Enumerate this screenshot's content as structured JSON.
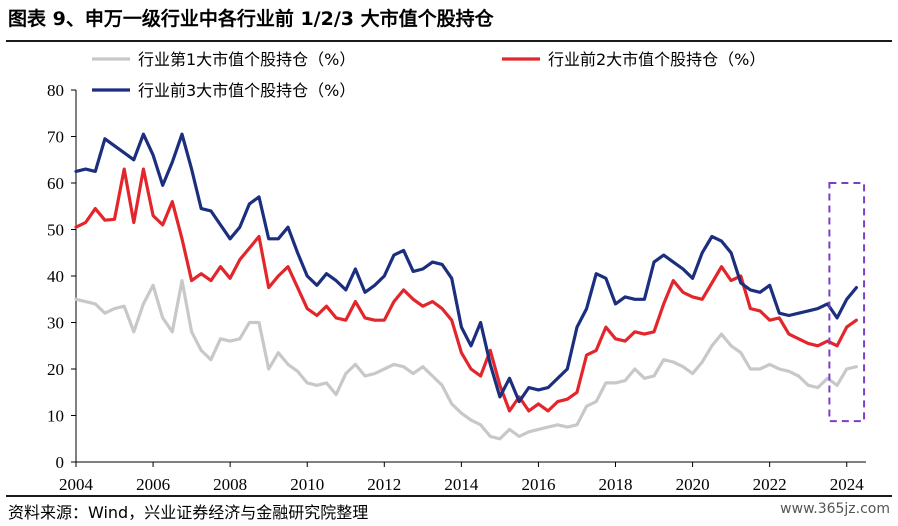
{
  "header": {
    "title": "图表 9、申万一级行业中各行业前 1/2/3 大市值个股持仓"
  },
  "footer": {
    "source": "资料来源：Wind，兴业证券经济与金融研究院整理",
    "watermark": "www.365jz.com"
  },
  "colors": {
    "top1": "#c8c8c8",
    "top2": "#e3262b",
    "top3": "#1b2f7e",
    "highlight": "#7a3fc4"
  },
  "chart_data": {
    "type": "line",
    "title": "",
    "xlabel": "",
    "ylabel": "",
    "xlim": [
      2004,
      2024.5
    ],
    "ylim": [
      0,
      80
    ],
    "x_ticks": [
      "2004",
      "2006",
      "2008",
      "2010",
      "2012",
      "2014",
      "2016",
      "2018",
      "2020",
      "2022",
      "2024"
    ],
    "y_ticks": [
      "0",
      "10",
      "20",
      "30",
      "40",
      "50",
      "60",
      "70",
      "80"
    ],
    "legend_position": "top",
    "grid": false,
    "annotation": "dashed purple box highlighting 2023 Q4 - 2024 Q2",
    "x": [
      2004.0,
      2004.25,
      2004.5,
      2004.75,
      2005.0,
      2005.25,
      2005.5,
      2005.75,
      2006.0,
      2006.25,
      2006.5,
      2006.75,
      2007.0,
      2007.25,
      2007.5,
      2007.75,
      2008.0,
      2008.25,
      2008.5,
      2008.75,
      2009.0,
      2009.25,
      2009.5,
      2009.75,
      2010.0,
      2010.25,
      2010.5,
      2010.75,
      2011.0,
      2011.25,
      2011.5,
      2011.75,
      2012.0,
      2012.25,
      2012.5,
      2012.75,
      2013.0,
      2013.25,
      2013.5,
      2013.75,
      2014.0,
      2014.25,
      2014.5,
      2014.75,
      2015.0,
      2015.25,
      2015.5,
      2015.75,
      2016.0,
      2016.25,
      2016.5,
      2016.75,
      2017.0,
      2017.25,
      2017.5,
      2017.75,
      2018.0,
      2018.25,
      2018.5,
      2018.75,
      2019.0,
      2019.25,
      2019.5,
      2019.75,
      2020.0,
      2020.25,
      2020.5,
      2020.75,
      2021.0,
      2021.25,
      2021.5,
      2021.75,
      2022.0,
      2022.25,
      2022.5,
      2022.75,
      2023.0,
      2023.25,
      2023.5,
      2023.75,
      2024.0,
      2024.25
    ],
    "series": [
      {
        "name": "行业第1大市值个股持仓（%）",
        "color": "#c8c8c8",
        "values": [
          35,
          34.5,
          34,
          32,
          33,
          33.5,
          28,
          34,
          38,
          31,
          28,
          39,
          28,
          24,
          22,
          26.5,
          26,
          26.5,
          30,
          30,
          20,
          23.5,
          21,
          19.5,
          17,
          16.5,
          17,
          14.5,
          19,
          21,
          18.5,
          19,
          20,
          21,
          20.5,
          19,
          20.5,
          18.5,
          16.5,
          12.5,
          10.5,
          9,
          8,
          5.5,
          5,
          7,
          5.5,
          6.5,
          7,
          7.5,
          8,
          7.5,
          8,
          12,
          13,
          17,
          17,
          17.5,
          20,
          18,
          18.5,
          22,
          21.5,
          20.5,
          19,
          21.5,
          25,
          27.5,
          25,
          23.5,
          20,
          20,
          21,
          20,
          19.5,
          18.5,
          16.5,
          16,
          18,
          16.5,
          20,
          20.5
        ]
      },
      {
        "name": "行业前2大市值个股持仓（%）",
        "color": "#e3262b",
        "values": [
          50.5,
          51.5,
          54.5,
          52,
          52.2,
          63,
          51.5,
          63,
          53,
          51,
          56,
          48,
          39,
          40.5,
          39,
          42,
          39.5,
          43.5,
          46,
          48.5,
          37.5,
          40,
          42,
          37.5,
          33,
          31.5,
          33.5,
          31,
          30.5,
          34.5,
          31,
          30.5,
          30.5,
          34.5,
          37,
          35,
          33.5,
          34.5,
          33,
          30.5,
          23.5,
          20,
          18.5,
          24,
          16.5,
          11,
          14,
          11,
          12.5,
          11,
          13,
          13.5,
          15,
          23,
          24,
          29,
          26.5,
          26,
          28,
          27.5,
          28,
          34,
          39,
          36.5,
          35.5,
          35,
          38.5,
          42,
          39,
          40,
          33,
          32.5,
          30.5,
          31,
          27.5,
          26.5,
          25.5,
          25,
          26,
          25,
          29,
          30.5
        ]
      },
      {
        "name": "行业前3大市值个股持仓（%）",
        "color": "#1b2f7e",
        "values": [
          62.5,
          63,
          62.5,
          69.5,
          68,
          66.5,
          65,
          70.5,
          66,
          59.5,
          64.5,
          70.5,
          63,
          54.5,
          54,
          51,
          48,
          50.5,
          55.5,
          57,
          48,
          48,
          50.5,
          45,
          40,
          38,
          40.5,
          39,
          37,
          41.5,
          36.5,
          38,
          40,
          44.5,
          45.5,
          41,
          41.5,
          43,
          42.5,
          39.5,
          29,
          25,
          30,
          21,
          14,
          18,
          13,
          16,
          15.5,
          16,
          18,
          20,
          29,
          33,
          40.5,
          39.5,
          34,
          35.5,
          35,
          35,
          43,
          44.5,
          43,
          41.5,
          39.5,
          45,
          48.5,
          47.5,
          45,
          38.5,
          37,
          36.5,
          38,
          32,
          31.5,
          32,
          32.5,
          33,
          34,
          31,
          35,
          37.5
        ]
      }
    ]
  }
}
